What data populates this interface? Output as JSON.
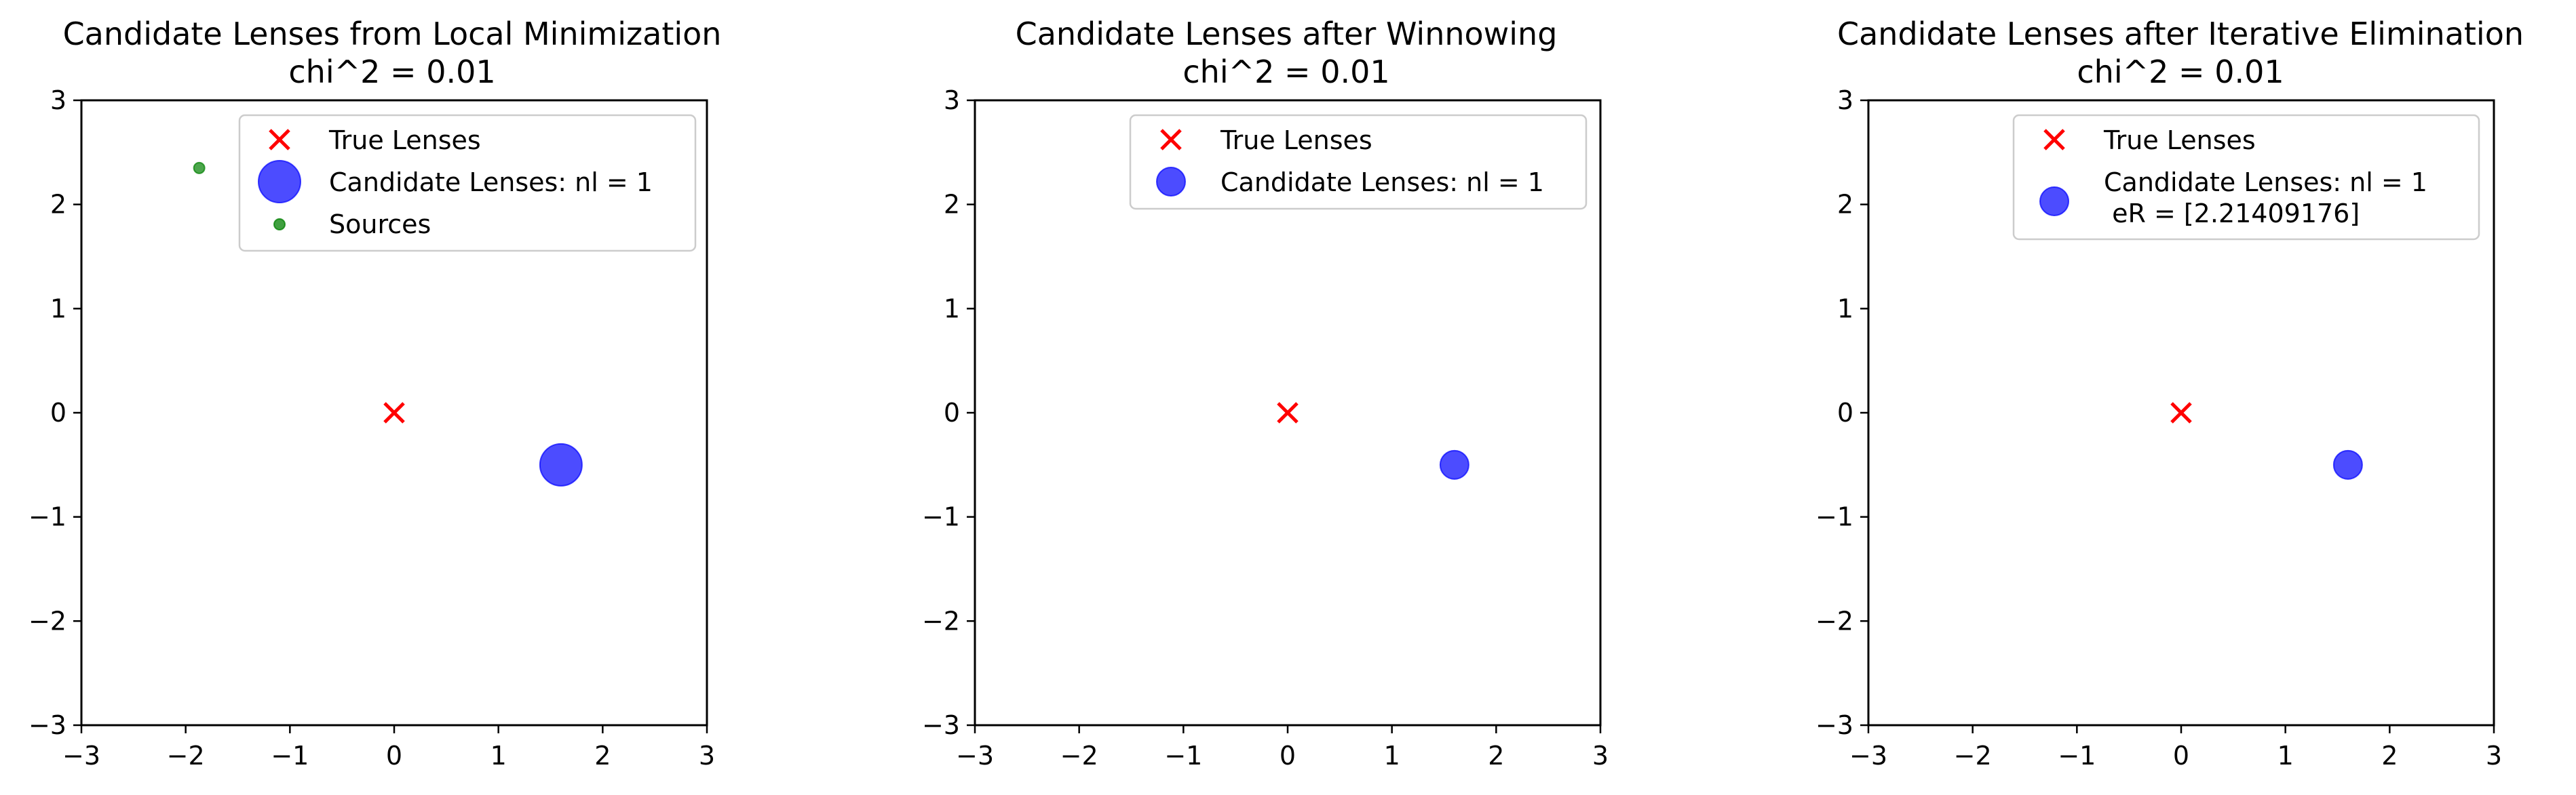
{
  "figure": {
    "background": "#ffffff"
  },
  "chart_data": [
    {
      "type": "scatter",
      "title": "Candidate Lenses from Local Minimization",
      "subtitle": "chi^2 = 0.01",
      "xlabel": "",
      "ylabel": "",
      "xlim": [
        -3,
        3
      ],
      "ylim": [
        -3,
        3
      ],
      "xticks": [
        "−3",
        "−2",
        "−1",
        "0",
        "1",
        "2",
        "3"
      ],
      "yticks": [
        "−3",
        "−2",
        "−1",
        "0",
        "1",
        "2",
        "3"
      ],
      "grid": false,
      "legend_position": "top-right",
      "series": [
        {
          "name": "True Lenses",
          "marker": "x",
          "color": "#ff0000",
          "points": [
            {
              "x": 0,
              "y": 0
            }
          ]
        },
        {
          "name": "Candidate Lenses: nl = 1",
          "marker": "circle",
          "color": "#0000ff",
          "size": "large",
          "points": [
            {
              "x": 1.6,
              "y": -0.5
            }
          ]
        },
        {
          "name": "Sources",
          "marker": "circle",
          "color": "#008000",
          "size": "small",
          "points": [
            {
              "x": -1.87,
              "y": 2.35
            }
          ]
        }
      ]
    },
    {
      "type": "scatter",
      "title": "Candidate Lenses after Winnowing",
      "subtitle": "chi^2 = 0.01",
      "xlabel": "",
      "ylabel": "",
      "xlim": [
        -3,
        3
      ],
      "ylim": [
        -3,
        3
      ],
      "xticks": [
        "−3",
        "−2",
        "−1",
        "0",
        "1",
        "2",
        "3"
      ],
      "yticks": [
        "−3",
        "−2",
        "−1",
        "0",
        "1",
        "2",
        "3"
      ],
      "grid": false,
      "legend_position": "top-right",
      "series": [
        {
          "name": "True Lenses",
          "marker": "x",
          "color": "#ff0000",
          "points": [
            {
              "x": 0,
              "y": 0
            }
          ]
        },
        {
          "name": "Candidate Lenses: nl = 1",
          "marker": "circle",
          "color": "#0000ff",
          "size": "medium",
          "points": [
            {
              "x": 1.6,
              "y": -0.5
            }
          ]
        }
      ]
    },
    {
      "type": "scatter",
      "title": "Candidate Lenses after Iterative Elimination",
      "subtitle": "chi^2 = 0.01",
      "xlabel": "",
      "ylabel": "",
      "xlim": [
        -3,
        3
      ],
      "ylim": [
        -3,
        3
      ],
      "xticks": [
        "−3",
        "−2",
        "−1",
        "0",
        "1",
        "2",
        "3"
      ],
      "yticks": [
        "−3",
        "−2",
        "−1",
        "0",
        "1",
        "2",
        "3"
      ],
      "grid": false,
      "legend_position": "top-right",
      "series": [
        {
          "name": "True Lenses",
          "marker": "x",
          "color": "#ff0000",
          "points": [
            {
              "x": 0,
              "y": 0
            }
          ]
        },
        {
          "name": "Candidate Lenses: nl = 1",
          "name_line2": " eR = [2.21409176]",
          "marker": "circle",
          "color": "#0000ff",
          "size": "medium",
          "points": [
            {
              "x": 1.6,
              "y": -0.5
            }
          ]
        }
      ]
    }
  ]
}
